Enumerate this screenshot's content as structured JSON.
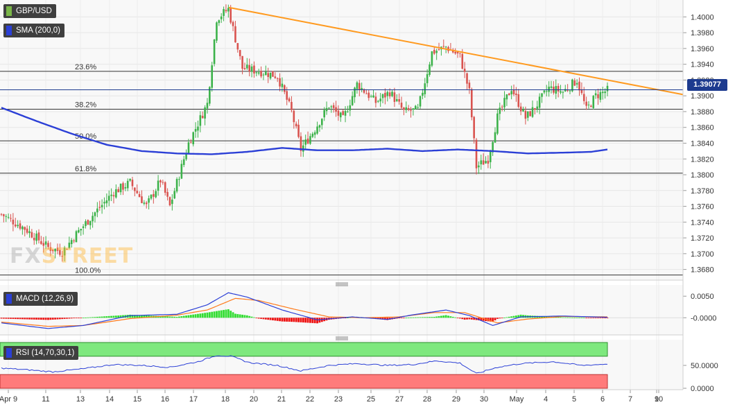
{
  "panels": {
    "price_label": "GBP/USD",
    "sma_label": "SMA (200,0)",
    "macd_label": "MACD (12,26,9)",
    "rsi_label": "RSI (14,70,30,1)",
    "last_price": "1.39077",
    "watermark": "FXSTREET"
  },
  "colors": {
    "up": "#3cb24a",
    "down": "#d9534f",
    "sma": "#2b3fd6",
    "trendline": "#ff9a1f",
    "macd_line": "#2b3fd6",
    "signal_line": "#ff7a1a",
    "hist_pos": "#33dd33",
    "hist_neg": "#ee1111",
    "rsi_line": "#2b3fd6",
    "rsi_overbought": "#7ee87e",
    "rsi_oversold": "#ff7b7b"
  },
  "chart_data": {
    "type": "candlestick",
    "x_labels": [
      "Apr 9",
      "11",
      "13",
      "14",
      "15",
      "16",
      "17",
      "18",
      "20",
      "21",
      "22",
      "23",
      "25",
      "27",
      "28",
      "29",
      "30",
      "May",
      "4",
      "5",
      "6",
      "7",
      "9",
      "10"
    ],
    "price_ticks": [
      "1.4000",
      "1.3980",
      "1.3960",
      "1.3940",
      "1.3920",
      "1.3900",
      "1.3880",
      "1.3860",
      "1.3840",
      "1.3820",
      "1.3800",
      "1.3780",
      "1.3760",
      "1.3740",
      "1.3720",
      "1.3700",
      "1.3680"
    ],
    "ylim": [
      1.367,
      1.401
    ],
    "fibonacci": [
      {
        "label": "23.6%",
        "value": 1.3931
      },
      {
        "label": "38.2%",
        "value": 1.3883
      },
      {
        "label": "50.0%",
        "value": 1.3843
      },
      {
        "label": "61.8%",
        "value": 1.3802
      },
      {
        "label": "100.0%",
        "value": 1.3673
      }
    ],
    "trendline": {
      "from": [
        1,
        1.4012
      ],
      "to": [
        259,
        1.392
      ]
    },
    "candle_count": 260,
    "close_anchors": [
      [
        0,
        1.375
      ],
      [
        10,
        1.3732
      ],
      [
        20,
        1.3708
      ],
      [
        26,
        1.3702
      ],
      [
        32,
        1.3725
      ],
      [
        40,
        1.3752
      ],
      [
        48,
        1.3778
      ],
      [
        55,
        1.379
      ],
      [
        62,
        1.376
      ],
      [
        68,
        1.3793
      ],
      [
        72,
        1.376
      ],
      [
        80,
        1.384
      ],
      [
        88,
        1.389
      ],
      [
        92,
        1.3998
      ],
      [
        97,
        1.401
      ],
      [
        103,
        1.3935
      ],
      [
        112,
        1.393
      ],
      [
        118,
        1.3925
      ],
      [
        124,
        1.388
      ],
      [
        128,
        1.3832
      ],
      [
        134,
        1.3858
      ],
      [
        140,
        1.3888
      ],
      [
        146,
        1.387
      ],
      [
        152,
        1.3915
      ],
      [
        160,
        1.3892
      ],
      [
        166,
        1.3905
      ],
      [
        172,
        1.388
      ],
      [
        178,
        1.3882
      ],
      [
        184,
        1.3955
      ],
      [
        190,
        1.3962
      ],
      [
        196,
        1.395
      ],
      [
        200,
        1.3905
      ],
      [
        203,
        1.381
      ],
      [
        208,
        1.382
      ],
      [
        212,
        1.3873
      ],
      [
        218,
        1.391
      ],
      [
        224,
        1.3872
      ],
      [
        228,
        1.3885
      ],
      [
        234,
        1.391
      ],
      [
        240,
        1.3905
      ],
      [
        246,
        1.392
      ],
      [
        250,
        1.3882
      ],
      [
        254,
        1.39
      ],
      [
        259,
        1.3907
      ]
    ],
    "sma_anchors": [
      [
        0,
        1.3885
      ],
      [
        15,
        1.3868
      ],
      [
        30,
        1.3852
      ],
      [
        45,
        1.3838
      ],
      [
        60,
        1.383
      ],
      [
        75,
        1.3827
      ],
      [
        90,
        1.3826
      ],
      [
        105,
        1.3829
      ],
      [
        120,
        1.3834
      ],
      [
        135,
        1.3831
      ],
      [
        150,
        1.3831
      ],
      [
        165,
        1.3833
      ],
      [
        180,
        1.383
      ],
      [
        195,
        1.3832
      ],
      [
        210,
        1.383
      ],
      [
        225,
        1.3827
      ],
      [
        240,
        1.3828
      ],
      [
        252,
        1.3829
      ],
      [
        259,
        1.3832
      ]
    ],
    "macd": {
      "ticks": [
        "0.0050",
        "-0.0000"
      ],
      "ylim": [
        -0.0035,
        0.0068
      ],
      "line_anchors": [
        [
          0,
          -0.0012
        ],
        [
          20,
          -0.0025
        ],
        [
          35,
          -0.0018
        ],
        [
          55,
          0.0005
        ],
        [
          75,
          0.0008
        ],
        [
          88,
          0.003
        ],
        [
          97,
          0.0058
        ],
        [
          105,
          0.0048
        ],
        [
          120,
          0.0018
        ],
        [
          135,
          -0.0005
        ],
        [
          150,
          0.0002
        ],
        [
          165,
          -0.0004
        ],
        [
          175,
          0.0006
        ],
        [
          190,
          0.0018
        ],
        [
          200,
          0.0005
        ],
        [
          210,
          -0.0018
        ],
        [
          222,
          0.0002
        ],
        [
          240,
          0.0004
        ],
        [
          259,
          0.0001
        ]
      ],
      "signal_anchors": [
        [
          0,
          -0.001
        ],
        [
          20,
          -0.002
        ],
        [
          35,
          -0.0018
        ],
        [
          55,
          -0.0002
        ],
        [
          75,
          0.0006
        ],
        [
          88,
          0.0018
        ],
        [
          100,
          0.0045
        ],
        [
          110,
          0.004
        ],
        [
          125,
          0.002
        ],
        [
          140,
          0.0002
        ],
        [
          155,
          0.0
        ],
        [
          170,
          0.0002
        ],
        [
          185,
          0.0012
        ],
        [
          198,
          0.0012
        ],
        [
          212,
          -0.0012
        ],
        [
          225,
          -0.0003
        ],
        [
          240,
          0.0003
        ],
        [
          259,
          0.0002
        ]
      ]
    },
    "rsi": {
      "ticks": [
        "50.0000",
        "0.0000"
      ],
      "ylim": [
        0,
        100
      ],
      "overbought": 70,
      "oversold": 30,
      "anchors": [
        [
          0,
          44
        ],
        [
          12,
          40
        ],
        [
          22,
          36
        ],
        [
          34,
          42
        ],
        [
          48,
          52
        ],
        [
          60,
          50
        ],
        [
          72,
          46
        ],
        [
          84,
          58
        ],
        [
          92,
          72
        ],
        [
          98,
          70
        ],
        [
          106,
          56
        ],
        [
          118,
          50
        ],
        [
          128,
          38
        ],
        [
          140,
          50
        ],
        [
          152,
          54
        ],
        [
          165,
          50
        ],
        [
          176,
          52
        ],
        [
          186,
          60
        ],
        [
          196,
          55
        ],
        [
          203,
          32
        ],
        [
          212,
          46
        ],
        [
          222,
          54
        ],
        [
          236,
          58
        ],
        [
          248,
          50
        ],
        [
          259,
          53
        ]
      ]
    }
  }
}
